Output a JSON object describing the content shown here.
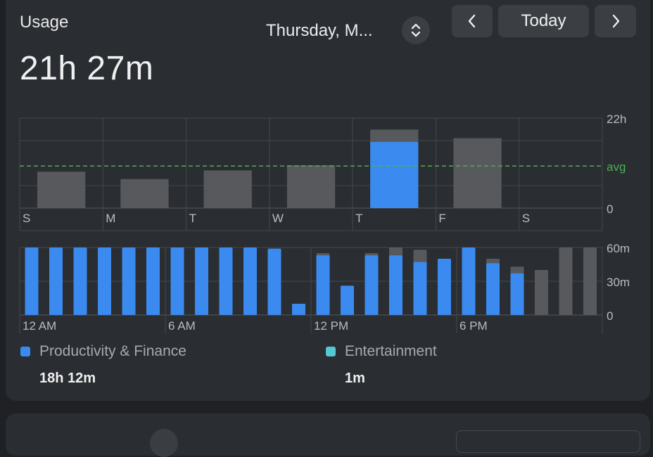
{
  "header": {
    "title": "Usage",
    "total": "21h 27m",
    "date_label": "Thursday, M...",
    "today_label": "Today"
  },
  "colors": {
    "card": "#2a2d31",
    "productivity": "#3b8af0",
    "entertainment": "#56c6d2",
    "other": "#58595c",
    "avg_line": "#4caf50"
  },
  "weekly_chart": {
    "day_labels": [
      "S",
      "M",
      "T",
      "W",
      "T",
      "F",
      "S"
    ],
    "hours_total": [
      8.9,
      7.1,
      9.2,
      10.5,
      19.2,
      17.1,
      0
    ],
    "hours_productivity": [
      0,
      0,
      0,
      0,
      16.2,
      0,
      0
    ],
    "y_labels": [
      "22h",
      "avg",
      "0"
    ],
    "y_max": 22,
    "avg_hours": 10.3
  },
  "hourly_chart": {
    "x_labels": [
      "12 AM",
      "6 AM",
      "12 PM",
      "6 PM"
    ],
    "y_labels": [
      "60m",
      "30m",
      "0"
    ],
    "y_max": 60,
    "minutes_productivity": [
      60,
      60,
      60,
      60,
      60,
      60,
      60,
      60,
      60,
      60,
      59,
      10,
      53,
      26,
      53,
      53,
      47,
      50,
      60,
      46,
      37,
      0,
      0,
      0
    ],
    "minutes_total": [
      60,
      60,
      60,
      60,
      60,
      60,
      60,
      60,
      60,
      60,
      59,
      10,
      55,
      26,
      55,
      60,
      58,
      50,
      60,
      50,
      43,
      40,
      60,
      60
    ]
  },
  "legend": [
    {
      "label": "Productivity & Finance",
      "value": "18h 12m",
      "color": "#3b8af0"
    },
    {
      "label": "Entertainment",
      "value": "1m",
      "color": "#56c6d2"
    }
  ]
}
